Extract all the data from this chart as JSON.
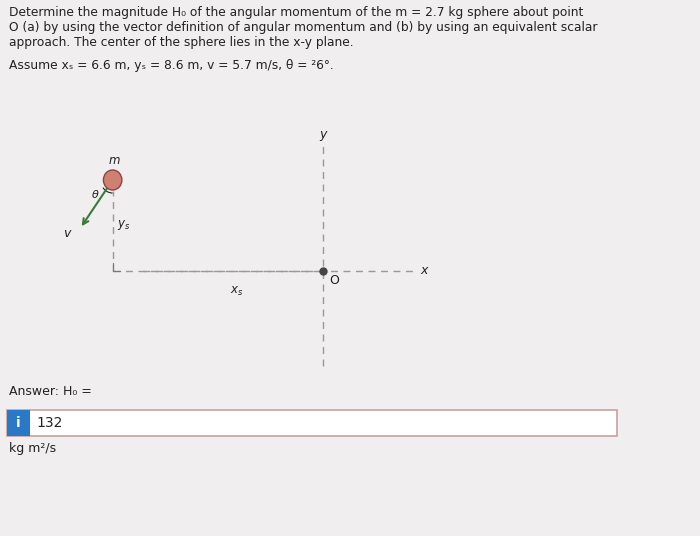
{
  "title_line1": "Determine the magnitude H₀ of the angular momentum of the m = 2.7 kg sphere about point",
  "title_line2": "O (a) by using the vector definition of angular momentum and (b) by using an equivalent scalar",
  "title_line3": "approach. The center of the sphere lies in the x-y plane.",
  "assume_text": "Assume xₛ = 6.6 m, yₛ = 8.6 m, v = 5.7 m/s, θ = ²6°.",
  "answer_label": "Answer: H₀ =",
  "answer_value": "132",
  "units": "kg m²/s",
  "bg_color": "#f0eeee",
  "diagram_bg": "#f5f3f3",
  "answer_box_border": "#c8a0a0",
  "icon_bg": "#2979c8",
  "icon_text": "i",
  "sphere_color": "#d08070",
  "sphere_outline": "#8b4444",
  "velocity_arrow_color": "#3a7a3a",
  "axis_color": "#777777",
  "dashed_color": "#999999",
  "dot_color": "#444444",
  "text_color": "#222222"
}
